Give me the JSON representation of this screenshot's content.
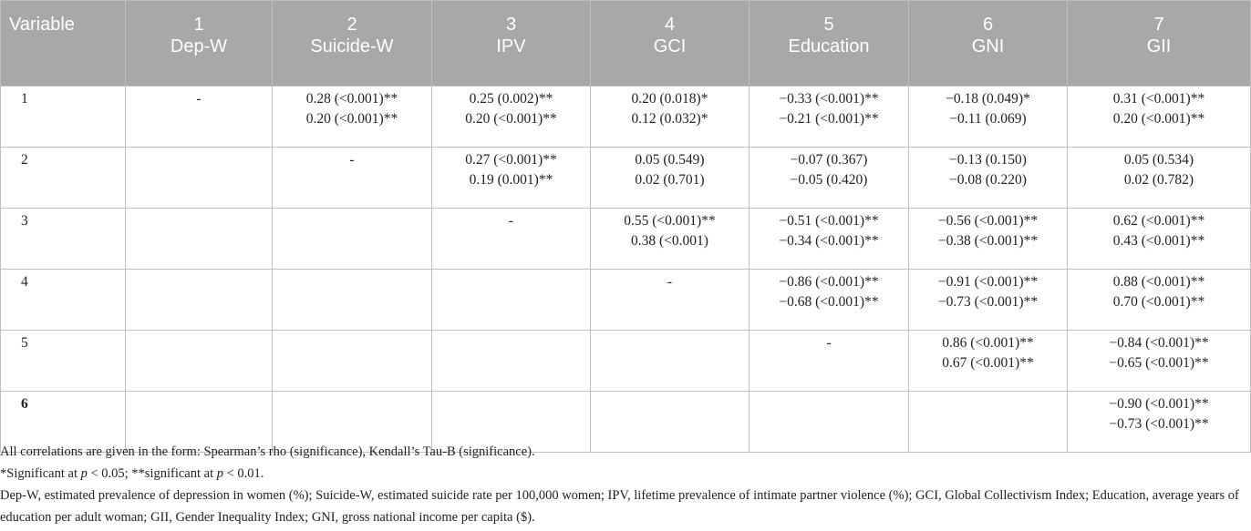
{
  "table": {
    "columns": [
      {
        "number": "",
        "name": "Variable"
      },
      {
        "number": "1",
        "name": "Dep-W"
      },
      {
        "number": "2",
        "name": "Suicide-W"
      },
      {
        "number": "3",
        "name": "IPV"
      },
      {
        "number": "4",
        "name": "GCI"
      },
      {
        "number": "5",
        "name": "Education"
      },
      {
        "number": "6",
        "name": "GNI"
      },
      {
        "number": "7",
        "name": "GII"
      }
    ],
    "rows": [
      {
        "label": "1",
        "cells": [
          [
            "-",
            ""
          ],
          [
            "0.28 (<0.001)**",
            "0.20 (<0.001)**"
          ],
          [
            "0.25 (0.002)**",
            "0.20 (<0.001)**"
          ],
          [
            "0.20 (0.018)*",
            "0.12 (0.032)*"
          ],
          [
            "−0.33 (<0.001)**",
            "−0.21 (<0.001)**"
          ],
          [
            "−0.18 (0.049)*",
            "−0.11 (0.069)"
          ],
          [
            "0.31 (<0.001)**",
            "0.20 (<0.001)**"
          ]
        ]
      },
      {
        "label": "2",
        "cells": [
          [
            "",
            ""
          ],
          [
            "-",
            ""
          ],
          [
            "0.27 (<0.001)**",
            "0.19 (0.001)**"
          ],
          [
            "0.05 (0.549)",
            "0.02 (0.701)"
          ],
          [
            "−0.07 (0.367)",
            "−0.05 (0.420)"
          ],
          [
            "−0.13 (0.150)",
            "−0.08 (0.220)"
          ],
          [
            "0.05 (0.534)",
            "0.02 (0.782)"
          ]
        ]
      },
      {
        "label": "3",
        "cells": [
          [
            "",
            ""
          ],
          [
            "",
            ""
          ],
          [
            "-",
            ""
          ],
          [
            "0.55 (<0.001)**",
            "0.38 (<0.001)"
          ],
          [
            "−0.51 (<0.001)**",
            "−0.34 (<0.001)**"
          ],
          [
            "−0.56 (<0.001)**",
            "−0.38 (<0.001)**"
          ],
          [
            "0.62 (<0.001)**",
            "0.43 (<0.001)**"
          ]
        ]
      },
      {
        "label": "4",
        "cells": [
          [
            "",
            ""
          ],
          [
            "",
            ""
          ],
          [
            "",
            ""
          ],
          [
            "-",
            ""
          ],
          [
            "−0.86 (<0.001)**",
            "−0.68 (<0.001)**"
          ],
          [
            "−0.91 (<0.001)**",
            "−0.73 (<0.001)**"
          ],
          [
            "0.88 (<0.001)**",
            "0.70 (<0.001)**"
          ]
        ]
      },
      {
        "label": "5",
        "cells": [
          [
            "",
            ""
          ],
          [
            "",
            ""
          ],
          [
            "",
            ""
          ],
          [
            "",
            ""
          ],
          [
            "-",
            ""
          ],
          [
            "0.86 (<0.001)**",
            "0.67 (<0.001)**"
          ],
          [
            "−0.84 (<0.001)**",
            "−0.65 (<0.001)**"
          ]
        ]
      },
      {
        "label": "6",
        "cells": [
          [
            "",
            ""
          ],
          [
            "",
            ""
          ],
          [
            "",
            ""
          ],
          [
            "",
            ""
          ],
          [
            "",
            ""
          ],
          [
            "",
            ""
          ],
          [
            "−0.90 (<0.001)**",
            "−0.73 (<0.001)**"
          ]
        ]
      }
    ]
  },
  "notes": {
    "form": "All correlations are given in the form: Spearman’s rho (significance), Kendall’s Tau-B (significance).",
    "sig_a": "*Significant at ",
    "sig_p1": "p",
    "sig_b": " < 0.05; **significant at ",
    "sig_p2": "p",
    "sig_c": " < 0.01.",
    "abbreviations": "Dep-W, estimated prevalence of depression in women (%); Suicide-W, estimated suicide rate per 100,000 women; IPV, lifetime prevalence of intimate partner violence (%); GCI, Global Collectivism Index; Education, average years of education per adult woman; GII, Gender Inequality Index; GNI, gross national income per capita ($)."
  }
}
